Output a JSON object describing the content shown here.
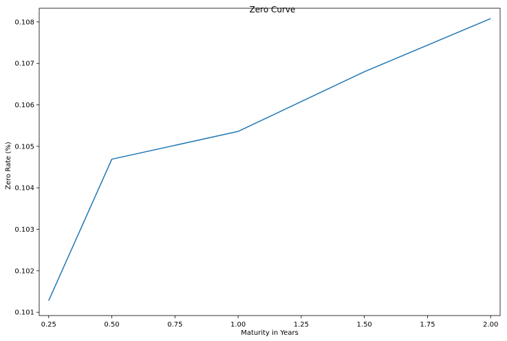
{
  "chart_data": {
    "type": "line",
    "title": "Zero Curve",
    "xlabel": "Maturity in Years",
    "ylabel": "Zero Rate (%)",
    "xlim": [
      0.2125,
      2.0375
    ],
    "ylim": [
      0.10092,
      0.10833
    ],
    "xticks": [
      0.25,
      0.5,
      0.75,
      1.0,
      1.25,
      1.5,
      1.75,
      2.0
    ],
    "xtick_labels": [
      "0.25",
      "0.50",
      "0.75",
      "1.00",
      "1.25",
      "1.50",
      "1.75",
      "2.00"
    ],
    "yticks": [
      0.101,
      0.102,
      0.103,
      0.104,
      0.105,
      0.106,
      0.107,
      0.108
    ],
    "ytick_labels": [
      "0.101",
      "0.102",
      "0.103",
      "0.104",
      "0.105",
      "0.106",
      "0.107",
      "0.108"
    ],
    "grid": false,
    "series": [
      {
        "color": "#1f77b4",
        "x": [
          0.25,
          0.5,
          1.0,
          1.5,
          2.0
        ],
        "y": [
          0.10128,
          0.10469,
          0.10536,
          0.1068,
          0.10808
        ]
      }
    ]
  }
}
